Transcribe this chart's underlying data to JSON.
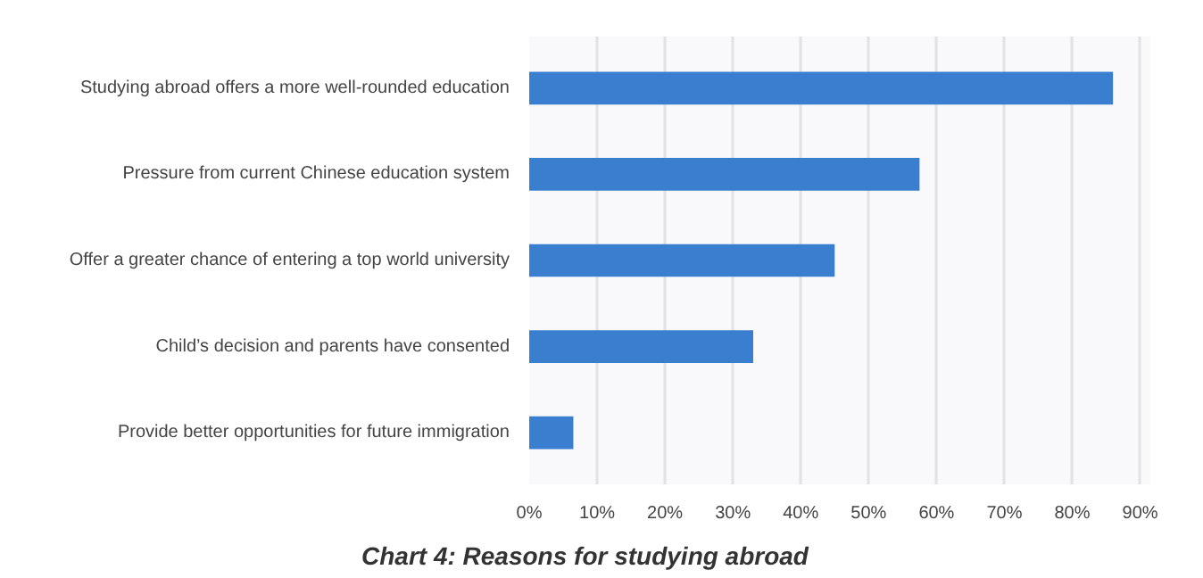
{
  "chart_data": {
    "type": "bar",
    "orientation": "horizontal",
    "title": "Chart 4: Reasons for studying abroad",
    "categories": [
      "Studying abroad offers a more well-rounded education",
      "Pressure from current Chinese education system",
      "Offer a greater chance of entering a top world university",
      "Child’s decision and parents have consented",
      "Provide better opportunities for future immigration"
    ],
    "values": [
      86,
      57.5,
      45,
      33,
      6.5
    ],
    "color": "#3a7fcf",
    "xlim": [
      0,
      90
    ],
    "xticks": [
      {
        "value": 0,
        "label": "0%"
      },
      {
        "value": 10,
        "label": "10%"
      },
      {
        "value": 20,
        "label": "20%"
      },
      {
        "value": 30,
        "label": "30%"
      },
      {
        "value": 40,
        "label": "40%"
      },
      {
        "value": 50,
        "label": "50%"
      },
      {
        "value": 60,
        "label": "60%"
      },
      {
        "value": 70,
        "label": "70%"
      },
      {
        "value": 80,
        "label": "80%"
      },
      {
        "value": 90,
        "label": "90%"
      }
    ],
    "grid": "x"
  }
}
